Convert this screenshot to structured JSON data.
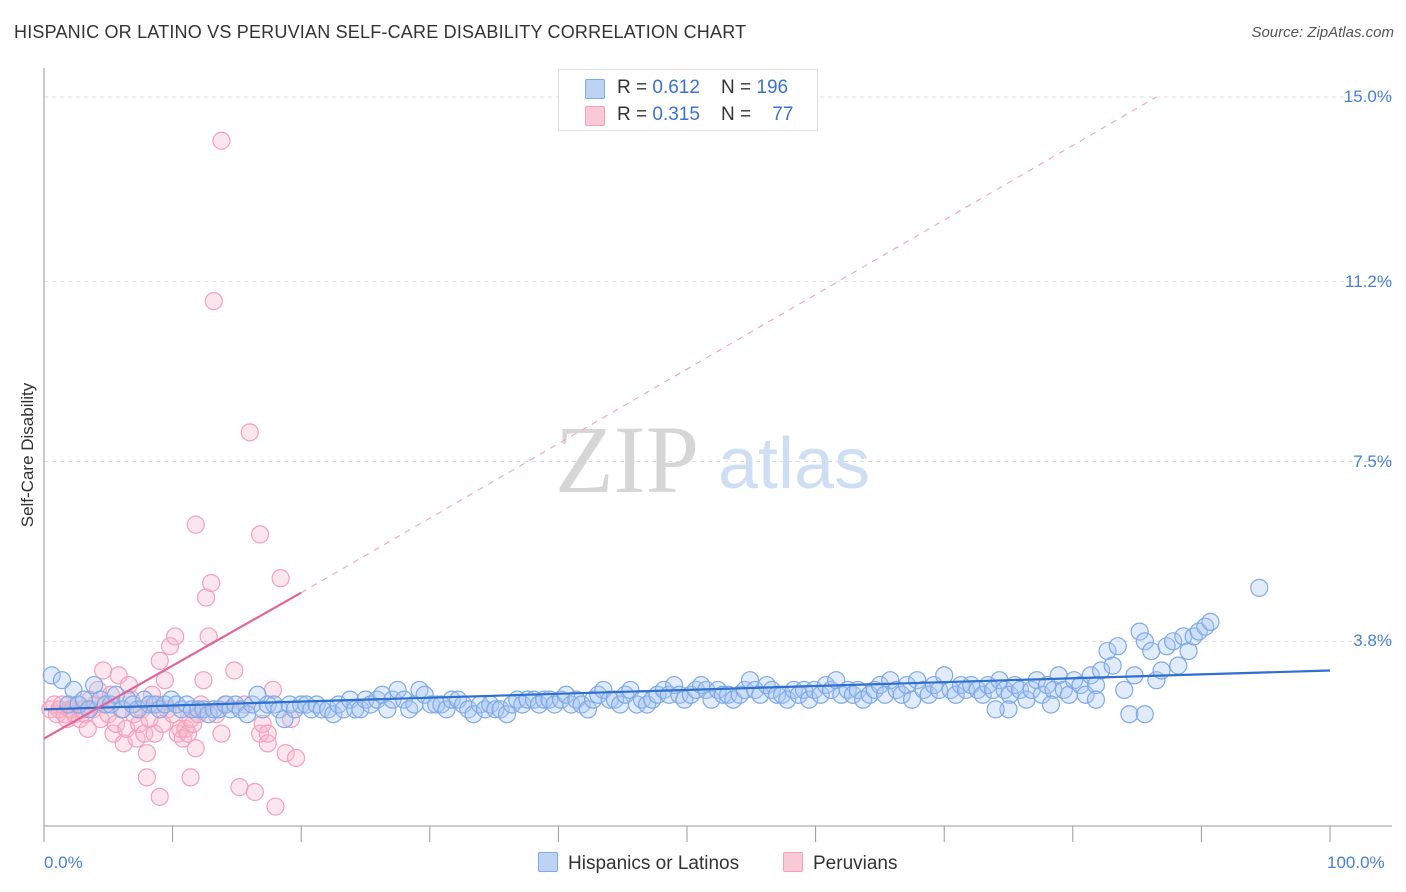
{
  "chart_data": {
    "type": "scatter",
    "title": "HISPANIC OR LATINO VS PERUVIAN SELF-CARE DISABILITY CORRELATION CHART",
    "source": "Source: ZipAtlas.com",
    "ylabel": "Self-Care Disability",
    "xlim": [
      0,
      100
    ],
    "ylim": [
      0,
      15.0
    ],
    "y_ticks": [
      {
        "value": 3.8,
        "label": "3.8%"
      },
      {
        "value": 7.5,
        "label": "7.5%"
      },
      {
        "value": 11.2,
        "label": "11.2%"
      },
      {
        "value": 15.0,
        "label": "15.0%"
      }
    ],
    "x_ticks": [
      {
        "value": 0,
        "label": "0.0%"
      },
      {
        "value": 100,
        "label": "100.0%"
      }
    ],
    "watermark": {
      "part1": "ZIP",
      "part2": "atlas"
    },
    "legend": [
      {
        "r_label": "R = ",
        "r_value": "0.612",
        "n_label": "N = ",
        "n_value": "196"
      },
      {
        "r_label": "R = ",
        "r_value": "0.315",
        "n_label": "N = ",
        "n_value": "77"
      }
    ],
    "series": [
      {
        "name": "Hispanics or Latinos",
        "color": "#7eaae6",
        "line_color": "#2e6fd0",
        "trend": {
          "x0": 0,
          "y0": 2.4,
          "x1": 100,
          "y1": 3.2
        },
        "points": [
          [
            0.6,
            3.1
          ],
          [
            1.4,
            3.0
          ],
          [
            1.9,
            2.5
          ],
          [
            2.3,
            2.8
          ],
          [
            2.7,
            2.5
          ],
          [
            3.1,
            2.6
          ],
          [
            3.5,
            2.4
          ],
          [
            3.9,
            2.9
          ],
          [
            4.4,
            2.6
          ],
          [
            4.8,
            2.5
          ],
          [
            5.2,
            2.5
          ],
          [
            5.6,
            2.7
          ],
          [
            6.1,
            2.4
          ],
          [
            6.5,
            2.6
          ],
          [
            6.9,
            2.5
          ],
          [
            7.3,
            2.4
          ],
          [
            7.8,
            2.6
          ],
          [
            8.2,
            2.5
          ],
          [
            8.6,
            2.5
          ],
          [
            9.0,
            2.4
          ],
          [
            9.4,
            2.5
          ],
          [
            9.9,
            2.6
          ],
          [
            10.3,
            2.5
          ],
          [
            10.7,
            2.4
          ],
          [
            11.1,
            2.5
          ],
          [
            11.5,
            2.4
          ],
          [
            12.0,
            2.4
          ],
          [
            12.4,
            2.4
          ],
          [
            12.8,
            2.3
          ],
          [
            13.2,
            2.4
          ],
          [
            13.6,
            2.4
          ],
          [
            14.1,
            2.5
          ],
          [
            14.5,
            2.4
          ],
          [
            14.9,
            2.5
          ],
          [
            15.3,
            2.4
          ],
          [
            15.8,
            2.3
          ],
          [
            16.2,
            2.5
          ],
          [
            16.6,
            2.7
          ],
          [
            17.0,
            2.4
          ],
          [
            17.4,
            2.5
          ],
          [
            17.9,
            2.5
          ],
          [
            18.3,
            2.4
          ],
          [
            18.7,
            2.2
          ],
          [
            19.1,
            2.5
          ],
          [
            19.5,
            2.4
          ],
          [
            20.0,
            2.5
          ],
          [
            20.4,
            2.5
          ],
          [
            20.8,
            2.4
          ],
          [
            21.2,
            2.5
          ],
          [
            21.6,
            2.4
          ],
          [
            22.1,
            2.4
          ],
          [
            22.5,
            2.3
          ],
          [
            22.9,
            2.5
          ],
          [
            23.3,
            2.4
          ],
          [
            23.8,
            2.6
          ],
          [
            24.2,
            2.4
          ],
          [
            24.6,
            2.4
          ],
          [
            25.0,
            2.6
          ],
          [
            25.4,
            2.5
          ],
          [
            25.9,
            2.6
          ],
          [
            26.3,
            2.7
          ],
          [
            26.7,
            2.4
          ],
          [
            27.1,
            2.6
          ],
          [
            27.5,
            2.8
          ],
          [
            28.0,
            2.6
          ],
          [
            28.4,
            2.4
          ],
          [
            28.8,
            2.5
          ],
          [
            29.2,
            2.8
          ],
          [
            29.6,
            2.7
          ],
          [
            30.1,
            2.5
          ],
          [
            30.5,
            2.5
          ],
          [
            30.9,
            2.5
          ],
          [
            31.3,
            2.4
          ],
          [
            31.7,
            2.6
          ],
          [
            32.2,
            2.6
          ],
          [
            32.6,
            2.5
          ],
          [
            33.0,
            2.4
          ],
          [
            33.4,
            2.3
          ],
          [
            33.9,
            2.5
          ],
          [
            34.3,
            2.4
          ],
          [
            34.7,
            2.5
          ],
          [
            35.1,
            2.4
          ],
          [
            35.5,
            2.4
          ],
          [
            36.0,
            2.3
          ],
          [
            36.4,
            2.5
          ],
          [
            36.8,
            2.6
          ],
          [
            37.2,
            2.5
          ],
          [
            37.6,
            2.6
          ],
          [
            38.1,
            2.6
          ],
          [
            38.5,
            2.5
          ],
          [
            38.9,
            2.6
          ],
          [
            39.3,
            2.6
          ],
          [
            39.7,
            2.5
          ],
          [
            40.2,
            2.6
          ],
          [
            40.6,
            2.7
          ],
          [
            41.0,
            2.5
          ],
          [
            41.4,
            2.6
          ],
          [
            41.8,
            2.5
          ],
          [
            42.3,
            2.4
          ],
          [
            42.7,
            2.6
          ],
          [
            43.1,
            2.7
          ],
          [
            43.5,
            2.8
          ],
          [
            44.0,
            2.6
          ],
          [
            44.4,
            2.6
          ],
          [
            44.8,
            2.5
          ],
          [
            45.2,
            2.7
          ],
          [
            45.6,
            2.8
          ],
          [
            46.1,
            2.5
          ],
          [
            46.5,
            2.6
          ],
          [
            46.9,
            2.5
          ],
          [
            47.3,
            2.6
          ],
          [
            47.7,
            2.7
          ],
          [
            48.2,
            2.8
          ],
          [
            48.6,
            2.7
          ],
          [
            49.0,
            2.9
          ],
          [
            49.4,
            2.7
          ],
          [
            49.8,
            2.6
          ],
          [
            50.3,
            2.7
          ],
          [
            50.7,
            2.8
          ],
          [
            51.1,
            2.9
          ],
          [
            51.5,
            2.8
          ],
          [
            51.9,
            2.6
          ],
          [
            52.4,
            2.8
          ],
          [
            52.8,
            2.7
          ],
          [
            53.2,
            2.7
          ],
          [
            53.6,
            2.6
          ],
          [
            54.1,
            2.7
          ],
          [
            54.5,
            2.8
          ],
          [
            54.9,
            3.0
          ],
          [
            55.3,
            2.8
          ],
          [
            55.7,
            2.7
          ],
          [
            56.2,
            2.9
          ],
          [
            56.6,
            2.8
          ],
          [
            57.0,
            2.7
          ],
          [
            57.4,
            2.7
          ],
          [
            57.8,
            2.6
          ],
          [
            58.3,
            2.8
          ],
          [
            58.7,
            2.7
          ],
          [
            59.1,
            2.8
          ],
          [
            59.5,
            2.6
          ],
          [
            59.9,
            2.8
          ],
          [
            60.4,
            2.7
          ],
          [
            60.8,
            2.9
          ],
          [
            61.2,
            2.8
          ],
          [
            61.6,
            3.0
          ],
          [
            62.0,
            2.7
          ],
          [
            62.5,
            2.8
          ],
          [
            62.9,
            2.7
          ],
          [
            63.3,
            2.8
          ],
          [
            63.7,
            2.6
          ],
          [
            64.2,
            2.7
          ],
          [
            64.6,
            2.8
          ],
          [
            65.0,
            2.9
          ],
          [
            65.4,
            2.7
          ],
          [
            65.8,
            3.0
          ],
          [
            66.3,
            2.8
          ],
          [
            66.7,
            2.7
          ],
          [
            67.1,
            2.9
          ],
          [
            67.5,
            2.6
          ],
          [
            67.9,
            3.0
          ],
          [
            68.4,
            2.8
          ],
          [
            68.8,
            2.7
          ],
          [
            69.2,
            2.9
          ],
          [
            69.6,
            2.8
          ],
          [
            70.0,
            3.1
          ],
          [
            70.5,
            2.8
          ],
          [
            70.9,
            2.7
          ],
          [
            71.3,
            2.9
          ],
          [
            71.7,
            2.8
          ],
          [
            72.1,
            2.9
          ],
          [
            72.6,
            2.8
          ],
          [
            73.0,
            2.7
          ],
          [
            73.4,
            2.9
          ],
          [
            73.8,
            2.8
          ],
          [
            74.3,
            3.0
          ],
          [
            74.7,
            2.8
          ],
          [
            75.1,
            2.7
          ],
          [
            75.5,
            2.9
          ],
          [
            75.9,
            2.8
          ],
          [
            76.4,
            2.6
          ],
          [
            76.8,
            2.8
          ],
          [
            77.2,
            3.0
          ],
          [
            77.6,
            2.7
          ],
          [
            78.0,
            2.9
          ],
          [
            78.5,
            2.8
          ],
          [
            78.9,
            3.1
          ],
          [
            79.3,
            2.8
          ],
          [
            79.7,
            2.7
          ],
          [
            80.1,
            3.0
          ],
          [
            80.6,
            2.9
          ],
          [
            81.0,
            2.7
          ],
          [
            81.4,
            3.1
          ],
          [
            81.8,
            2.9
          ],
          [
            82.2,
            3.2
          ],
          [
            82.7,
            3.6
          ],
          [
            83.1,
            3.3
          ],
          [
            83.5,
            3.7
          ],
          [
            84.0,
            2.8
          ],
          [
            84.4,
            2.3
          ],
          [
            84.8,
            3.1
          ],
          [
            85.2,
            4.0
          ],
          [
            85.6,
            3.8
          ],
          [
            86.1,
            3.6
          ],
          [
            86.5,
            3.0
          ],
          [
            86.9,
            3.2
          ],
          [
            87.3,
            3.7
          ],
          [
            87.8,
            3.8
          ],
          [
            88.2,
            3.3
          ],
          [
            88.6,
            3.9
          ],
          [
            89.0,
            3.6
          ],
          [
            89.4,
            3.9
          ],
          [
            89.8,
            4.0
          ],
          [
            90.3,
            4.1
          ],
          [
            90.7,
            4.2
          ],
          [
            94.5,
            4.9
          ],
          [
            75.0,
            2.4
          ],
          [
            78.3,
            2.5
          ],
          [
            74.0,
            2.4
          ],
          [
            81.8,
            2.6
          ],
          [
            85.6,
            2.3
          ]
        ]
      },
      {
        "name": "Peruvians",
        "color": "#f2a0bb",
        "line_color": "#e0649a",
        "trend": {
          "x0": 0,
          "y0": 1.8,
          "x1": 20,
          "y1": 4.8,
          "dash_to_x": 86.5,
          "dash_to_y": 15.0
        },
        "points": [
          [
            0.5,
            2.4
          ],
          [
            0.8,
            2.5
          ],
          [
            1.0,
            2.3
          ],
          [
            1.2,
            2.4
          ],
          [
            1.4,
            2.5
          ],
          [
            1.6,
            2.3
          ],
          [
            1.8,
            2.2
          ],
          [
            2.0,
            2.4
          ],
          [
            2.2,
            2.4
          ],
          [
            2.4,
            2.3
          ],
          [
            2.6,
            2.5
          ],
          [
            2.8,
            2.2
          ],
          [
            3.0,
            2.4
          ],
          [
            3.2,
            2.3
          ],
          [
            3.4,
            2.0
          ],
          [
            3.6,
            2.6
          ],
          [
            3.8,
            2.4
          ],
          [
            4.0,
            2.5
          ],
          [
            4.2,
            2.8
          ],
          [
            4.4,
            2.2
          ],
          [
            4.6,
            3.2
          ],
          [
            4.8,
            2.5
          ],
          [
            5.0,
            2.3
          ],
          [
            5.2,
            2.7
          ],
          [
            5.4,
            1.9
          ],
          [
            5.6,
            2.1
          ],
          [
            5.8,
            3.1
          ],
          [
            6.0,
            2.4
          ],
          [
            6.2,
            1.7
          ],
          [
            6.4,
            2.0
          ],
          [
            6.6,
            2.9
          ],
          [
            6.8,
            2.6
          ],
          [
            7.0,
            2.3
          ],
          [
            7.2,
            1.8
          ],
          [
            7.4,
            2.1
          ],
          [
            7.6,
            2.4
          ],
          [
            7.8,
            1.9
          ],
          [
            8.0,
            1.5
          ],
          [
            8.2,
            2.2
          ],
          [
            8.4,
            2.7
          ],
          [
            8.6,
            1.9
          ],
          [
            8.8,
            2.5
          ],
          [
            9.0,
            3.4
          ],
          [
            9.2,
            2.1
          ],
          [
            9.4,
            3.0
          ],
          [
            9.6,
            2.4
          ],
          [
            9.8,
            3.7
          ],
          [
            10.0,
            2.3
          ],
          [
            10.2,
            3.9
          ],
          [
            10.4,
            1.9
          ],
          [
            10.6,
            2.0
          ],
          [
            10.8,
            1.8
          ],
          [
            11.0,
            2.0
          ],
          [
            11.2,
            1.9
          ],
          [
            11.4,
            2.2
          ],
          [
            11.6,
            2.1
          ],
          [
            11.8,
            1.6
          ],
          [
            12.0,
            2.3
          ],
          [
            12.2,
            2.5
          ],
          [
            12.4,
            3.0
          ],
          [
            12.6,
            4.7
          ],
          [
            12.8,
            3.9
          ],
          [
            13.0,
            5.0
          ],
          [
            13.2,
            10.8
          ],
          [
            13.4,
            2.3
          ],
          [
            13.8,
            1.9
          ],
          [
            14.2,
            2.5
          ],
          [
            14.8,
            3.2
          ],
          [
            15.2,
            0.8
          ],
          [
            15.6,
            2.5
          ],
          [
            16.0,
            8.1
          ],
          [
            16.4,
            0.7
          ],
          [
            16.8,
            1.9
          ],
          [
            17.0,
            2.1
          ],
          [
            17.4,
            1.7
          ],
          [
            17.8,
            2.8
          ],
          [
            18.0,
            0.4
          ],
          [
            18.4,
            5.1
          ],
          [
            18.8,
            1.5
          ],
          [
            19.2,
            2.2
          ],
          [
            9.0,
            0.6
          ],
          [
            11.4,
            1.0
          ],
          [
            8.0,
            1.0
          ],
          [
            13.8,
            14.1
          ],
          [
            11.8,
            6.2
          ],
          [
            17.4,
            1.9
          ],
          [
            19.6,
            1.4
          ],
          [
            16.8,
            6.0
          ]
        ]
      }
    ]
  },
  "bottom_legend": [
    "Hispanics or Latinos",
    "Peruvians"
  ]
}
